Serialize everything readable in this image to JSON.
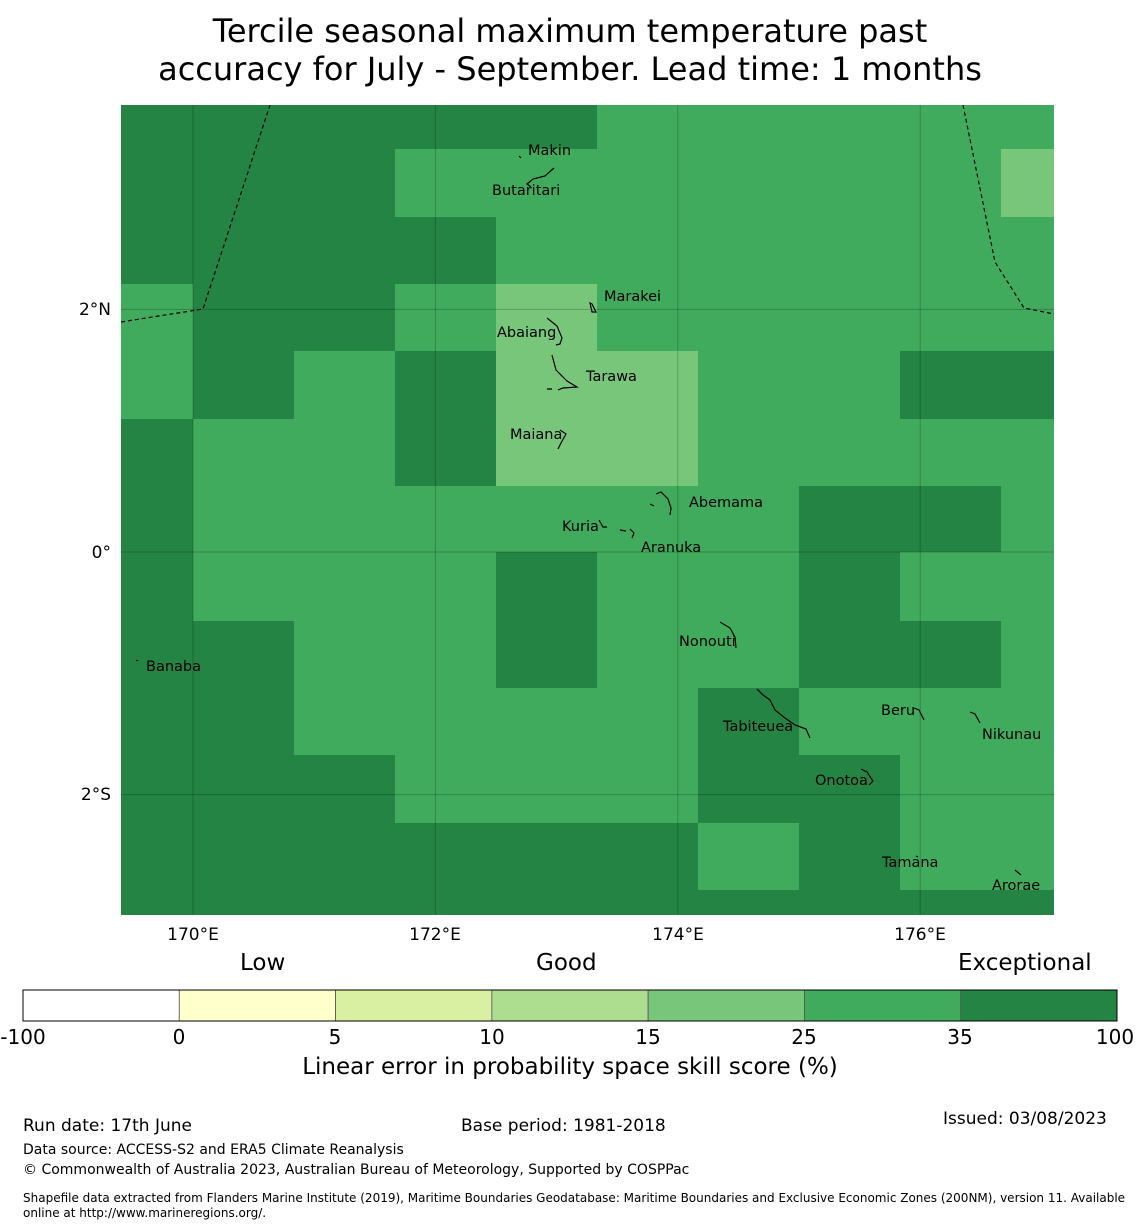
{
  "title_line1": "Tercile seasonal maximum temperature past",
  "title_line2": "accuracy for July - September. Lead time: 1 months",
  "map": {
    "lon_range": [
      169.4,
      177.1
    ],
    "lat_range": [
      -2.9,
      3.6
    ],
    "lon_ticks": [
      {
        "value": 170,
        "label": "170°E"
      },
      {
        "value": 172,
        "label": "172°E"
      },
      {
        "value": 174,
        "label": "174°E"
      },
      {
        "value": 176,
        "label": "176°E"
      }
    ],
    "lat_ticks": [
      {
        "value": 2,
        "label": "2°N"
      },
      {
        "value": 0,
        "label": "0°"
      },
      {
        "value": -2,
        "label": "2°S"
      }
    ],
    "gridlines": true,
    "islands": [
      {
        "name": "Makin",
        "lon": 173.0,
        "lat": 3.2
      },
      {
        "name": "Butaritari",
        "lon": 172.8,
        "lat": 3.05
      },
      {
        "name": "Marakei",
        "lon": 173.3,
        "lat": 2.0
      },
      {
        "name": "Abaiang",
        "lon": 173.0,
        "lat": 1.8
      },
      {
        "name": "Tarawa",
        "lon": 173.0,
        "lat": 1.4
      },
      {
        "name": "Maiana",
        "lon": 173.0,
        "lat": 0.95
      },
      {
        "name": "Abemama",
        "lon": 173.9,
        "lat": 0.4
      },
      {
        "name": "Kuria",
        "lon": 173.4,
        "lat": 0.22
      },
      {
        "name": "Aranuka",
        "lon": 173.6,
        "lat": 0.15
      },
      {
        "name": "Nonouti",
        "lon": 174.4,
        "lat": -0.65
      },
      {
        "name": "Banaba",
        "lon": 169.5,
        "lat": -0.85
      },
      {
        "name": "Tabiteuea",
        "lon": 174.8,
        "lat": -1.35
      },
      {
        "name": "Beru",
        "lon": 176.0,
        "lat": -1.35
      },
      {
        "name": "Nikunau",
        "lon": 176.45,
        "lat": -1.35
      },
      {
        "name": "Onotoa",
        "lon": 175.55,
        "lat": -1.8
      },
      {
        "name": "Tamana",
        "lon": 175.98,
        "lat": -2.5
      },
      {
        "name": "Arorae",
        "lon": 176.82,
        "lat": -2.65
      }
    ]
  },
  "legend": {
    "category_low": "Low",
    "category_good": "Good",
    "category_exceptional": "Exceptional",
    "bins": [
      {
        "from": -100,
        "to": 0,
        "color": "#ffffff"
      },
      {
        "from": 0,
        "to": 5,
        "color": "#ffffcc"
      },
      {
        "from": 5,
        "to": 10,
        "color": "#d9f0a3"
      },
      {
        "from": 10,
        "to": 15,
        "color": "#addd8e"
      },
      {
        "from": 15,
        "to": 25,
        "color": "#78c679"
      },
      {
        "from": 25,
        "to": 35,
        "color": "#41ab5d"
      },
      {
        "from": 35,
        "to": 100,
        "color": "#238443"
      }
    ],
    "tick_labels": [
      "-100",
      "0",
      "5",
      "10",
      "15",
      "25",
      "35",
      "100"
    ],
    "label": "Linear error in probability space skill score (%)"
  },
  "footer": {
    "run_date": "Run date: 17th June",
    "base_period": "Base period: 1981-2018",
    "issued": "Issued: 03/08/2023",
    "data_source": "Data source: ACCESS-S2 and ERA5 Climate Reanalysis",
    "copyright": "© Commonwealth of Australia 2023, Australian Bureau of Meteorology, Supported by COSPPac",
    "shapefile": "Shapefile data extracted from Flanders Marine Institute (2019), Maritime Boundaries Geodatabase: Maritime Boundaries and Exclusive Economic Zones (200NM), version 11. Available online at http://www.marineregions.org/."
  }
}
